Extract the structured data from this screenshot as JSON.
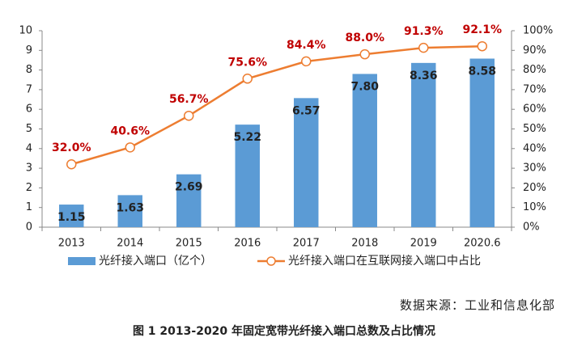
{
  "chart_data": {
    "type": "bar_line",
    "categories": [
      "2013",
      "2014",
      "2015",
      "2016",
      "2017",
      "2018",
      "2019",
      "2020.6"
    ],
    "series": [
      {
        "name": "光纤接入端口（亿个）",
        "type": "bar",
        "color": "#5b9bd5",
        "values": [
          1.15,
          1.63,
          2.69,
          5.22,
          6.57,
          7.8,
          8.36,
          8.58
        ],
        "value_labels": [
          "1.15",
          "1.63",
          "2.69",
          "5.22",
          "6.57",
          "7.80",
          "8.36",
          "8.58"
        ]
      },
      {
        "name": "光纤接入端口在互联网接入端口中占比",
        "type": "line",
        "axis": "y2",
        "color": "#ed7d31",
        "label_color": "#c00000",
        "values": [
          32.0,
          40.6,
          56.7,
          75.6,
          84.4,
          88.0,
          91.3,
          92.1
        ],
        "value_labels": [
          "32.0%",
          "40.6%",
          "56.7%",
          "75.6%",
          "84.4%",
          "88.0%",
          "91.3%",
          "92.1%"
        ]
      }
    ],
    "ylim": [
      0,
      10
    ],
    "yticks": [
      0,
      1,
      2,
      3,
      4,
      5,
      6,
      7,
      8,
      9,
      10
    ],
    "y2lim": [
      0,
      100
    ],
    "y2ticks": [
      {
        "value": 0,
        "label": "0%"
      },
      {
        "value": 10,
        "label": "10%"
      },
      {
        "value": 20,
        "label": "20%"
      },
      {
        "value": 30,
        "label": "30%"
      },
      {
        "value": 40,
        "label": "40%"
      },
      {
        "value": 50,
        "label": "50%"
      },
      {
        "value": 60,
        "label": "60%"
      },
      {
        "value": 70,
        "label": "70%"
      },
      {
        "value": 80,
        "label": "80%"
      },
      {
        "value": 90,
        "label": "90%"
      },
      {
        "value": 100,
        "label": "100%"
      }
    ],
    "source": "数据来源：工业和信息化部",
    "caption": "图 1   2013-2020 年固定宽带光纤接入端口总数及占比情况"
  }
}
